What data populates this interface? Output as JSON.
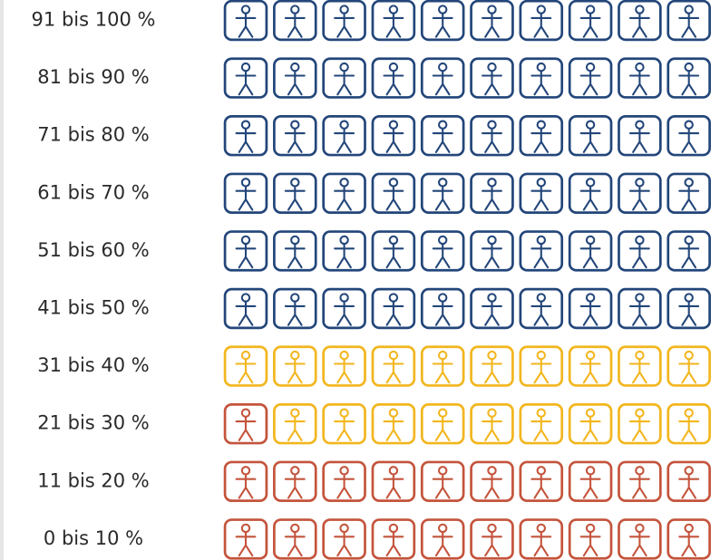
{
  "rows": [
    {
      "label": "91 bis 100 %",
      "segments": [
        {
          "color": "#23467a",
          "count": 10
        }
      ]
    },
    {
      "label": "81 bis 90 %",
      "segments": [
        {
          "color": "#23467a",
          "count": 10
        }
      ]
    },
    {
      "label": "71 bis 80 %",
      "segments": [
        {
          "color": "#23467a",
          "count": 10
        }
      ]
    },
    {
      "label": "61 bis 70 %",
      "segments": [
        {
          "color": "#23467a",
          "count": 10
        }
      ]
    },
    {
      "label": "51 bis 60 %",
      "segments": [
        {
          "color": "#23467a",
          "count": 10
        }
      ]
    },
    {
      "label": "41 bis 50 %",
      "segments": [
        {
          "color": "#23467a",
          "count": 10
        }
      ]
    },
    {
      "label": "31 bis 40 %",
      "segments": [
        {
          "color": "#f2b61e",
          "count": 10
        }
      ]
    },
    {
      "label": "21 bis 30 %",
      "segments": [
        {
          "color": "#c4543c",
          "count": 1
        },
        {
          "color": "#f2b61e",
          "count": 9
        }
      ]
    },
    {
      "label": "11 bis 20 %",
      "segments": [
        {
          "color": "#c4543c",
          "count": 10
        }
      ]
    },
    {
      "label": "0 bis 10 %",
      "segments": [
        {
          "color": "#c4543c",
          "count": 10
        }
      ]
    }
  ]
}
